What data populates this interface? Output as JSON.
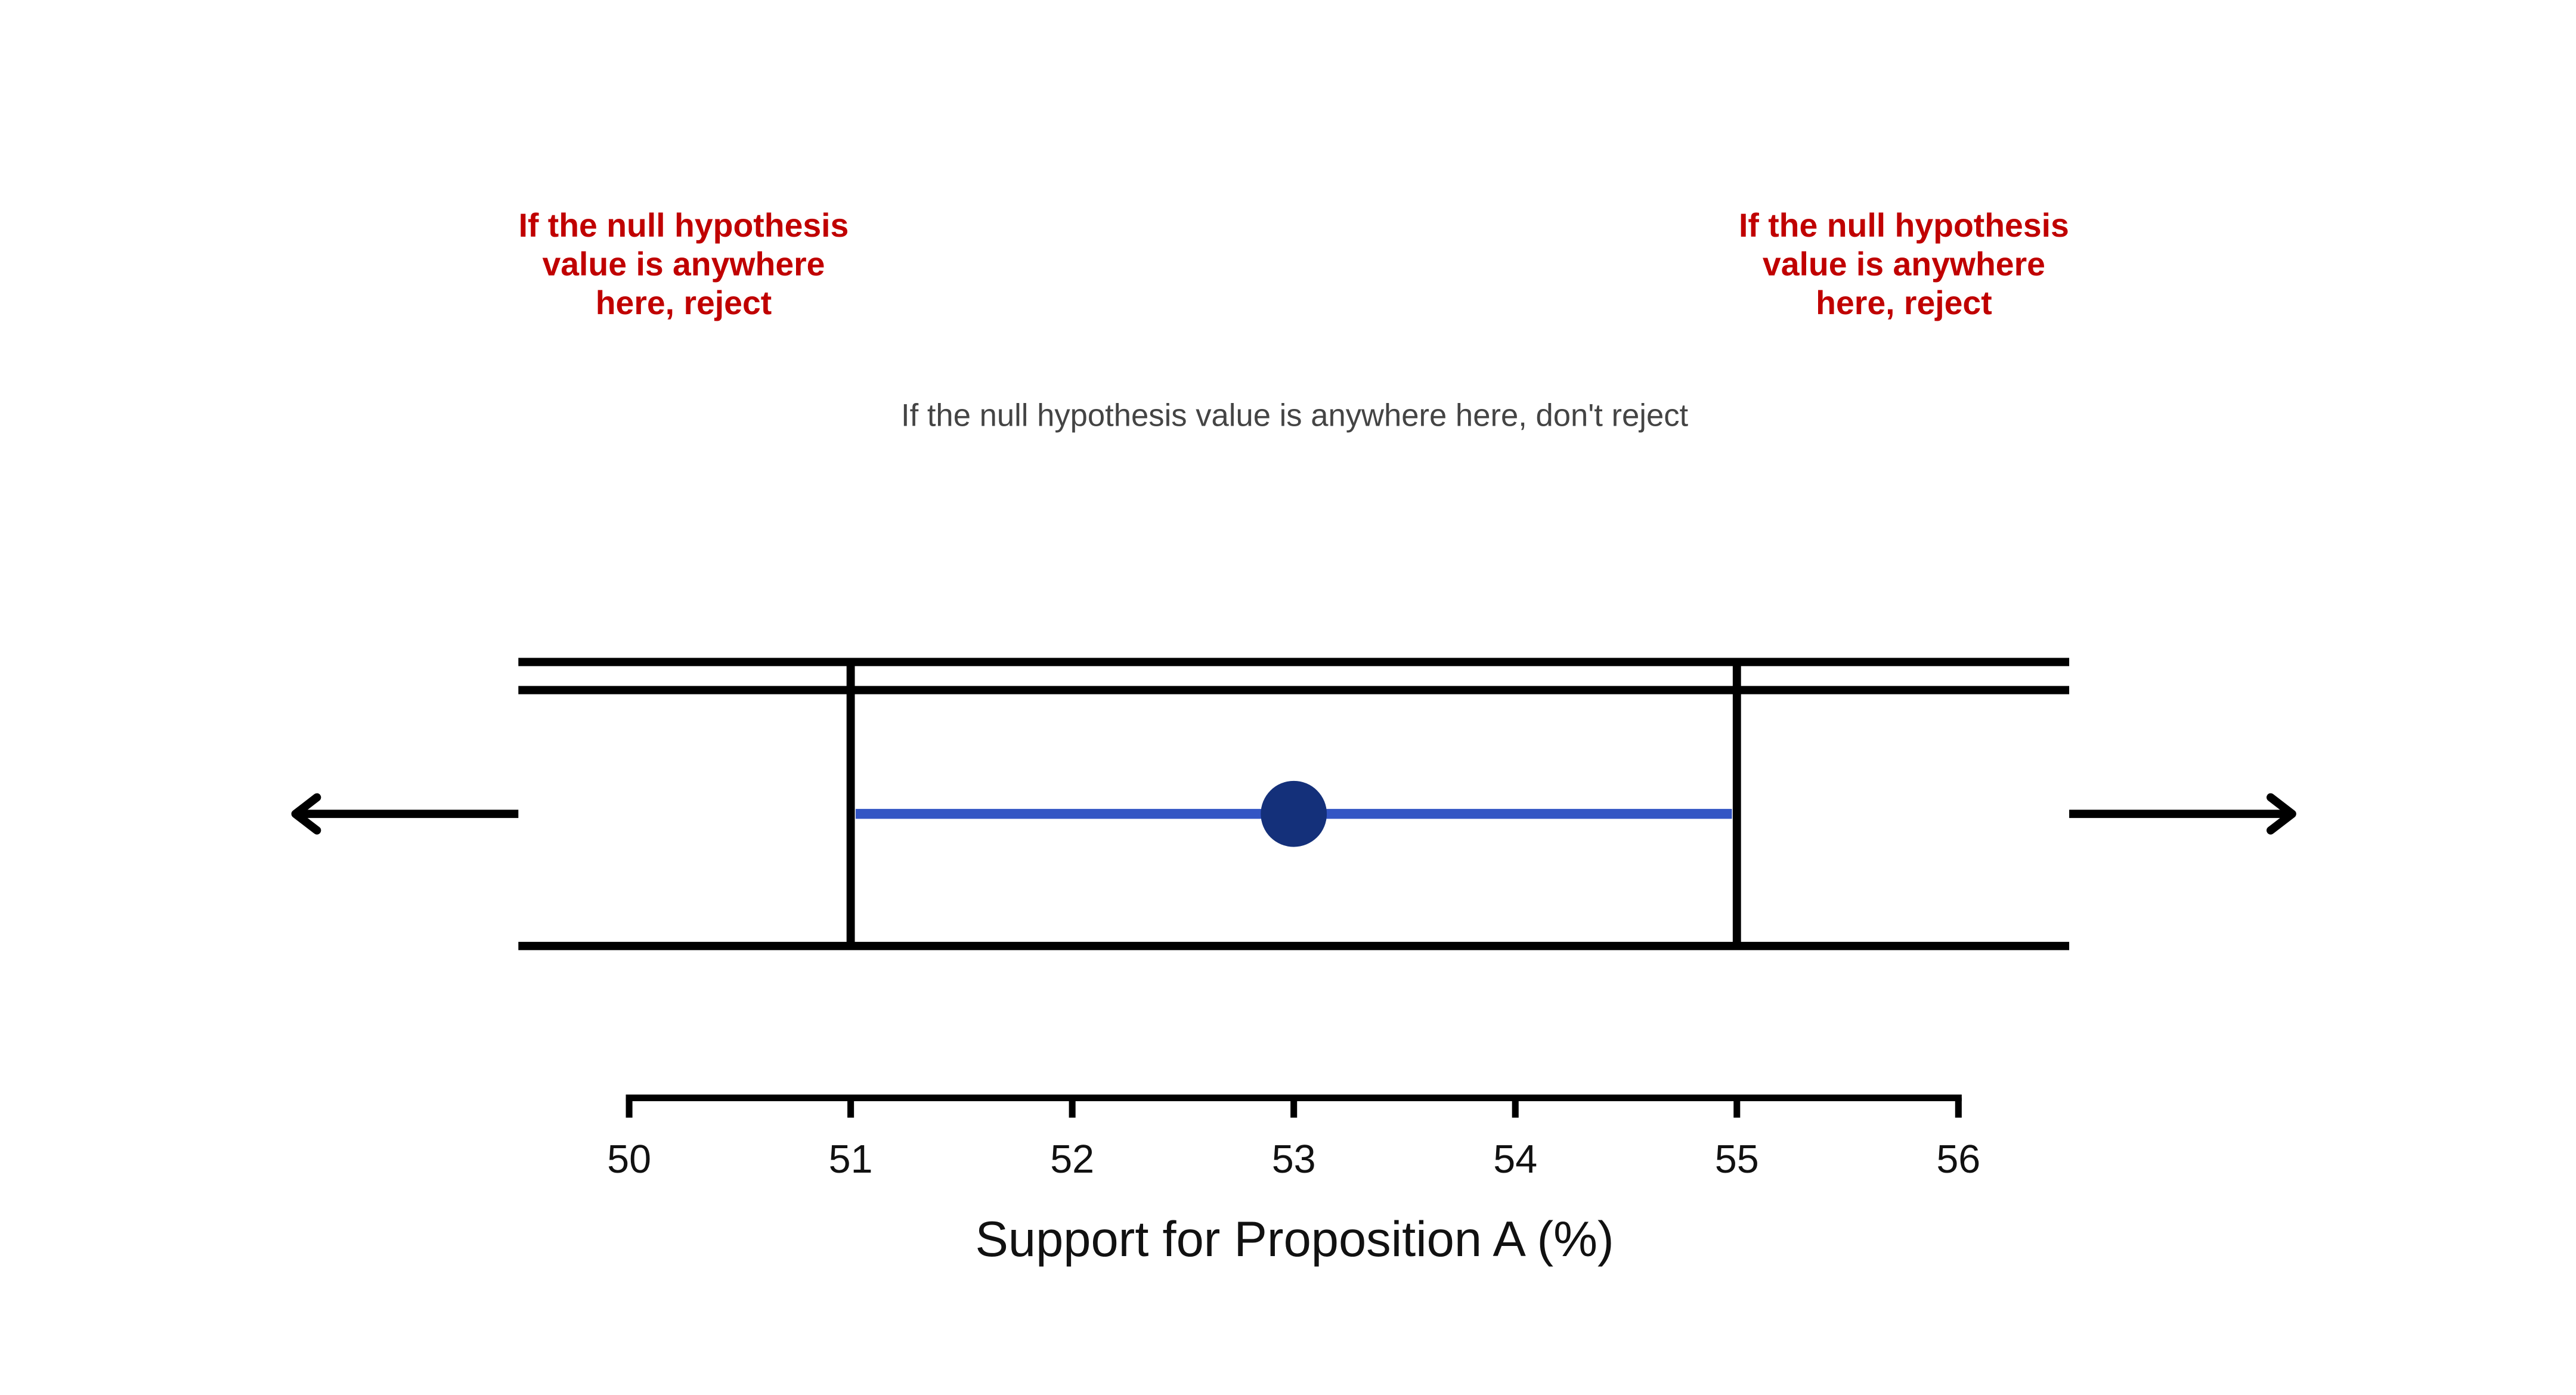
{
  "chart_data": {
    "type": "interval",
    "estimate": 53,
    "interval": [
      51,
      55
    ],
    "line_color": "#3355c4",
    "point_color": "#14307a",
    "annotation_color": "#c00000",
    "reject_left": [
      "If the null hypothesis",
      "value is anywhere",
      "here, reject"
    ],
    "reject_right": [
      "If the null hypothesis",
      "value is anywhere",
      "here, reject"
    ],
    "keep_note": "If the null hypothesis value is anywhere here, don't reject",
    "xlabel": "Support for Proposition A (%)",
    "xlim": [
      50,
      56
    ],
    "xticks": [
      50,
      51,
      52,
      53,
      54,
      55,
      56
    ]
  }
}
